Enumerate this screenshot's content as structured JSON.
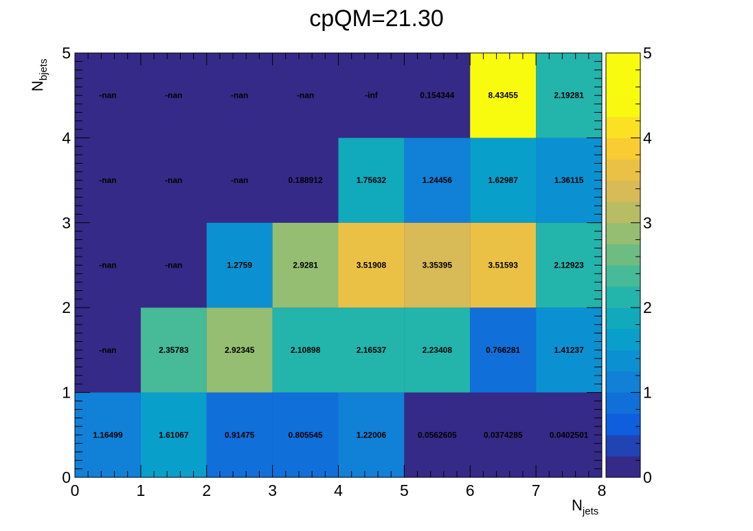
{
  "chart_data": {
    "type": "heatmap",
    "title": "cpQM=21.30",
    "xlabel": "N",
    "xlabel_sub": "jets",
    "ylabel": "N",
    "ylabel_sub": "bjets",
    "x_bins": [
      0,
      1,
      2,
      3,
      4,
      5,
      6,
      7,
      8
    ],
    "y_bins": [
      0,
      1,
      2,
      3,
      4,
      5
    ],
    "xlim": [
      0,
      8
    ],
    "ylim": [
      0,
      5
    ],
    "x_ticks": [
      "0",
      "1",
      "2",
      "3",
      "4",
      "5",
      "6",
      "7",
      "8"
    ],
    "y_ticks": [
      "0",
      "1",
      "2",
      "3",
      "4",
      "5"
    ],
    "zlim": [
      0,
      5
    ],
    "z_ticks": [
      "0",
      "1",
      "2",
      "3",
      "4",
      "5"
    ],
    "colormap": "parula",
    "grid": false,
    "colorbar": "right",
    "rows": [
      {
        "y": 0,
        "values": [
          1.16499,
          1.61067,
          0.91475,
          0.805545,
          1.22006,
          0.0562605,
          0.0374285,
          0.0402501
        ],
        "labels": [
          "1.16499",
          "1.61067",
          "0.91475",
          "0.805545",
          "1.22006",
          "0.0562605",
          "0.0374285",
          "0.0402501"
        ]
      },
      {
        "y": 1,
        "values": [
          null,
          2.35783,
          2.92345,
          2.10898,
          2.16537,
          2.23408,
          0.766281,
          1.41237
        ],
        "labels": [
          "-nan",
          "2.35783",
          "2.92345",
          "2.10898",
          "2.16537",
          "2.23408",
          "0.766281",
          "1.41237"
        ]
      },
      {
        "y": 2,
        "values": [
          null,
          null,
          1.2759,
          2.9281,
          3.51908,
          3.35395,
          3.51593,
          2.12923
        ],
        "labels": [
          "-nan",
          "-nan",
          "1.2759",
          "2.9281",
          "3.51908",
          "3.35395",
          "3.51593",
          "2.12923"
        ]
      },
      {
        "y": 3,
        "values": [
          null,
          null,
          null,
          0.188912,
          1.75632,
          1.24456,
          1.62987,
          1.36115
        ],
        "labels": [
          "-nan",
          "-nan",
          "-nan",
          "0.188912",
          "1.75632",
          "1.24456",
          "1.62987",
          "1.36115"
        ]
      },
      {
        "y": 4,
        "values": [
          null,
          null,
          null,
          null,
          null,
          0.154344,
          8.43455,
          2.19281
        ],
        "labels": [
          "-nan",
          "-nan",
          "-nan",
          "-nan",
          "-inf",
          "0.154344",
          "8.43455",
          "2.19281"
        ]
      }
    ]
  }
}
